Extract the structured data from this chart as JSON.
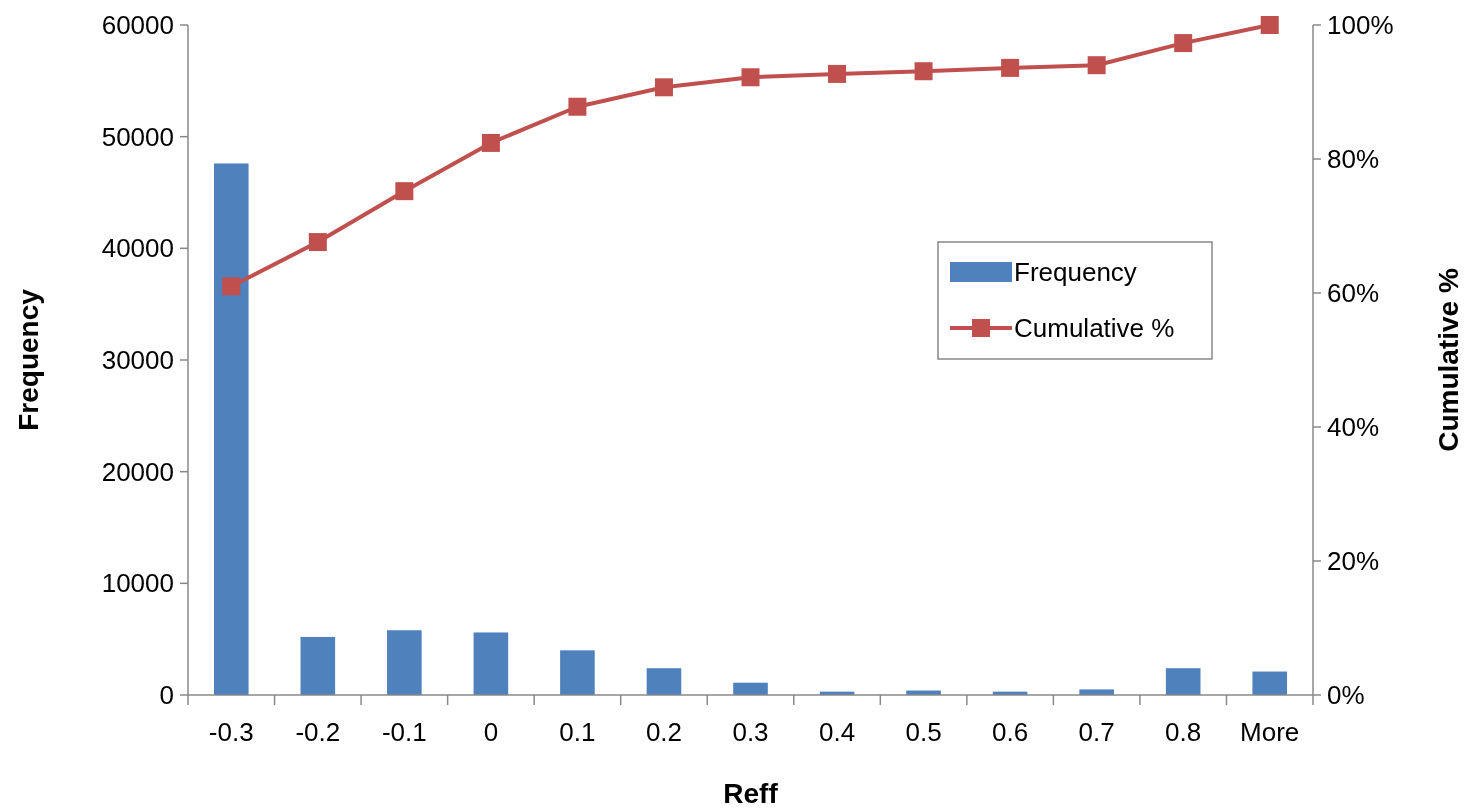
{
  "chart_data": {
    "type": "bar",
    "xlabel": "Reff",
    "ylabel": "Frequency",
    "y2label": "Cumulative %",
    "categories": [
      "-0.3",
      "-0.2",
      "-0.1",
      "0",
      "0.1",
      "0.2",
      "0.3",
      "0.4",
      "0.5",
      "0.6",
      "0.7",
      "0.8",
      "More"
    ],
    "series": [
      {
        "name": "Frequency",
        "color": "#4f81bd",
        "values": [
          47600,
          5200,
          5800,
          5600,
          4000,
          2400,
          1100,
          300,
          400,
          300,
          500,
          2400,
          2100
        ]
      },
      {
        "name": "Cumulative %",
        "type": "line",
        "axis": "y2",
        "color": "#c0504d",
        "marker": "square",
        "values": [
          61.0,
          67.6,
          75.2,
          82.4,
          87.8,
          90.7,
          92.2,
          92.7,
          93.1,
          93.6,
          94.0,
          97.3,
          100
        ]
      }
    ],
    "ylim": [
      0,
      60000
    ],
    "yticks": [
      0,
      10000,
      20000,
      30000,
      40000,
      50000,
      60000
    ],
    "y2lim": [
      0,
      100
    ],
    "y2ticks": [
      {
        "value": 0,
        "label": "0%"
      },
      {
        "value": 20,
        "label": "20%"
      },
      {
        "value": 40,
        "label": "40%"
      },
      {
        "value": 60,
        "label": "60%"
      },
      {
        "value": 80,
        "label": "80%"
      },
      {
        "value": 100,
        "label": "100%"
      }
    ],
    "legend": "right",
    "grid": false
  }
}
